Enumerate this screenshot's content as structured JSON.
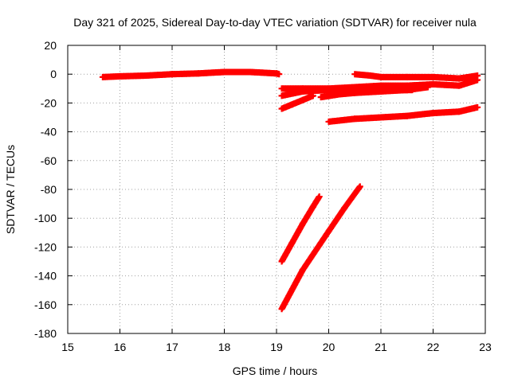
{
  "chart_data": {
    "type": "scatter",
    "title": "Day 321 of 2025, Sidereal Day-to-day VTEC variation (SDTVAR) for receiver nula",
    "xlabel": "GPS time / hours",
    "ylabel": "SDTVAR / TECUs",
    "xlim": [
      15,
      23
    ],
    "ylim": [
      -180,
      20
    ],
    "xticks": [
      15,
      16,
      17,
      18,
      19,
      20,
      21,
      22,
      23
    ],
    "yticks": [
      20,
      0,
      -20,
      -40,
      -60,
      -80,
      -100,
      -120,
      -140,
      -160,
      -180
    ],
    "grid": true,
    "marker": "plus",
    "color": "#ff0000",
    "series": [
      {
        "points": [
          [
            15.67,
            -2
          ],
          [
            16.0,
            -1.5
          ],
          [
            16.5,
            -1
          ],
          [
            17.0,
            0
          ],
          [
            17.5,
            0.5
          ],
          [
            18.0,
            1.5
          ],
          [
            18.5,
            1.5
          ],
          [
            19.0,
            0.5
          ],
          [
            19.05,
            0
          ]
        ]
      },
      {
        "points": [
          [
            19.1,
            -10
          ],
          [
            19.5,
            -10
          ],
          [
            20.0,
            -10
          ],
          [
            20.5,
            -9
          ],
          [
            21.0,
            -8
          ],
          [
            21.5,
            -8
          ],
          [
            22.0,
            -7
          ],
          [
            22.5,
            -8
          ],
          [
            22.85,
            -4
          ]
        ]
      },
      {
        "points": [
          [
            19.1,
            -15
          ],
          [
            19.5,
            -12
          ],
          [
            20.0,
            -11
          ],
          [
            20.5,
            -11
          ],
          [
            21.0,
            -11
          ],
          [
            21.5,
            -11
          ],
          [
            21.6,
            -11
          ]
        ]
      },
      {
        "points": [
          [
            19.1,
            -24
          ],
          [
            19.3,
            -21
          ],
          [
            19.5,
            -18
          ],
          [
            19.7,
            -15
          ]
        ]
      },
      {
        "points": [
          [
            19.85,
            -16
          ],
          [
            20.2,
            -14
          ],
          [
            20.5,
            -13
          ],
          [
            21.0,
            -12
          ],
          [
            21.5,
            -11
          ],
          [
            21.9,
            -9
          ]
        ]
      },
      {
        "points": [
          [
            20.5,
            0
          ],
          [
            20.8,
            -1
          ],
          [
            21.0,
            -2
          ],
          [
            21.5,
            -2
          ],
          [
            22.0,
            -2
          ],
          [
            22.5,
            -3
          ],
          [
            22.85,
            -1
          ]
        ]
      },
      {
        "points": [
          [
            20.0,
            -33
          ],
          [
            20.5,
            -31
          ],
          [
            21.0,
            -30
          ],
          [
            21.5,
            -29
          ],
          [
            22.0,
            -27
          ],
          [
            22.5,
            -26
          ],
          [
            22.85,
            -23
          ]
        ]
      },
      {
        "points": [
          [
            19.1,
            -130
          ],
          [
            19.3,
            -117
          ],
          [
            19.5,
            -104
          ],
          [
            19.7,
            -92
          ],
          [
            19.82,
            -85
          ]
        ]
      },
      {
        "points": [
          [
            19.1,
            -163
          ],
          [
            19.5,
            -136
          ],
          [
            20.0,
            -109
          ],
          [
            20.3,
            -93
          ],
          [
            20.6,
            -78
          ]
        ]
      }
    ]
  }
}
